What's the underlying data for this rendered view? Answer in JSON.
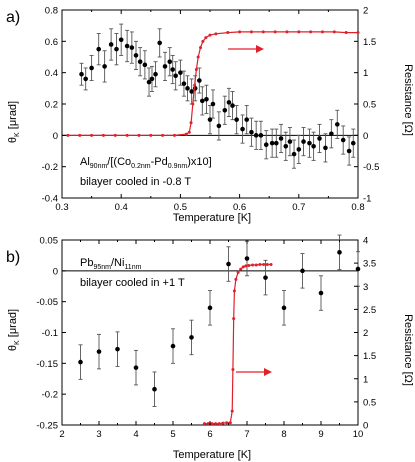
{
  "chart_data": [
    {
      "panel_label": "a)",
      "type": "scatter",
      "xlabel": "Temperature [K]",
      "ylabel": "θ",
      "ylabel_sub": "K",
      "ylabel_unit": " [μrad]",
      "y2label": "Resistance [Ω]",
      "xlim": [
        0.3,
        0.8
      ],
      "ylim": [
        -0.4,
        0.8
      ],
      "y2lim": [
        -1,
        2
      ],
      "xticks": [
        "0.3",
        "0.4",
        "0.5",
        "0.6",
        "0.7",
        "0.8"
      ],
      "yticks": [
        "-0.4",
        "-0.2",
        "0",
        "0.2",
        "0.4",
        "0.6",
        "0.8"
      ],
      "y2ticks": [
        "-1",
        "-0.5",
        "0",
        "0.5",
        "1",
        "1.5",
        "2"
      ],
      "annotation_line1_parts": [
        "Al",
        "90nm",
        "/[(Co",
        "0.2nm",
        "-Pd",
        "0.9nm",
        ")x10]"
      ],
      "annotation_line2": "bilayer cooled in -0.8 T",
      "arrow_direction": "right",
      "grid": false,
      "series": [
        {
          "axis": "left",
          "color": "#000000",
          "points": [
            {
              "x": 0.333,
              "y": 0.39,
              "err": 0.07
            },
            {
              "x": 0.34,
              "y": 0.36,
              "err": 0.07
            },
            {
              "x": 0.35,
              "y": 0.43,
              "err": 0.08
            },
            {
              "x": 0.362,
              "y": 0.55,
              "err": 0.1
            },
            {
              "x": 0.372,
              "y": 0.44,
              "err": 0.1
            },
            {
              "x": 0.383,
              "y": 0.58,
              "err": 0.1
            },
            {
              "x": 0.392,
              "y": 0.55,
              "err": 0.1
            },
            {
              "x": 0.4,
              "y": 0.61,
              "err": 0.1
            },
            {
              "x": 0.41,
              "y": 0.57,
              "err": 0.1
            },
            {
              "x": 0.418,
              "y": 0.56,
              "err": 0.1
            },
            {
              "x": 0.425,
              "y": 0.51,
              "err": 0.09
            },
            {
              "x": 0.432,
              "y": 0.47,
              "err": 0.09
            },
            {
              "x": 0.44,
              "y": 0.45,
              "err": 0.09
            },
            {
              "x": 0.447,
              "y": 0.34,
              "err": 0.09
            },
            {
              "x": 0.452,
              "y": 0.36,
              "err": 0.08
            },
            {
              "x": 0.458,
              "y": 0.39,
              "err": 0.08
            },
            {
              "x": 0.465,
              "y": 0.59,
              "err": 0.09
            },
            {
              "x": 0.474,
              "y": 0.44,
              "err": 0.09
            },
            {
              "x": 0.482,
              "y": 0.47,
              "err": 0.09
            },
            {
              "x": 0.487,
              "y": 0.42,
              "err": 0.09
            },
            {
              "x": 0.492,
              "y": 0.38,
              "err": 0.09
            },
            {
              "x": 0.5,
              "y": 0.4,
              "err": 0.08
            },
            {
              "x": 0.506,
              "y": 0.33,
              "err": 0.08
            },
            {
              "x": 0.512,
              "y": 0.3,
              "err": 0.08
            },
            {
              "x": 0.519,
              "y": 0.28,
              "err": 0.08
            },
            {
              "x": 0.525,
              "y": 0.3,
              "err": 0.08
            },
            {
              "x": 0.532,
              "y": 0.35,
              "err": 0.08
            },
            {
              "x": 0.537,
              "y": 0.22,
              "err": 0.09
            },
            {
              "x": 0.544,
              "y": 0.23,
              "err": 0.09
            },
            {
              "x": 0.55,
              "y": 0.1,
              "err": 0.09
            },
            {
              "x": 0.555,
              "y": 0.2,
              "err": 0.09
            },
            {
              "x": 0.565,
              "y": 0.06,
              "err": 0.09
            },
            {
              "x": 0.575,
              "y": 0.16,
              "err": 0.09
            },
            {
              "x": 0.582,
              "y": 0.21,
              "err": 0.09
            },
            {
              "x": 0.588,
              "y": 0.19,
              "err": 0.09
            },
            {
              "x": 0.595,
              "y": 0.1,
              "err": 0.09
            },
            {
              "x": 0.605,
              "y": 0.04,
              "err": 0.09
            },
            {
              "x": 0.612,
              "y": 0.1,
              "err": 0.09
            },
            {
              "x": 0.62,
              "y": 0.02,
              "err": 0.09
            },
            {
              "x": 0.628,
              "y": 0.0,
              "err": 0.09
            },
            {
              "x": 0.636,
              "y": 0.0,
              "err": 0.09
            },
            {
              "x": 0.645,
              "y": -0.06,
              "err": 0.09
            },
            {
              "x": 0.655,
              "y": -0.05,
              "err": 0.09
            },
            {
              "x": 0.662,
              "y": -0.05,
              "err": 0.09
            },
            {
              "x": 0.67,
              "y": -0.02,
              "err": 0.09
            },
            {
              "x": 0.678,
              "y": -0.07,
              "err": 0.09
            },
            {
              "x": 0.685,
              "y": -0.04,
              "err": 0.09
            },
            {
              "x": 0.692,
              "y": -0.12,
              "err": 0.09
            },
            {
              "x": 0.7,
              "y": -0.09,
              "err": 0.09
            },
            {
              "x": 0.708,
              "y": -0.04,
              "err": 0.09
            },
            {
              "x": 0.718,
              "y": -0.05,
              "err": 0.09
            },
            {
              "x": 0.725,
              "y": -0.07,
              "err": 0.09
            },
            {
              "x": 0.735,
              "y": -0.02,
              "err": 0.09
            },
            {
              "x": 0.745,
              "y": -0.08,
              "err": 0.09
            },
            {
              "x": 0.755,
              "y": 0.01,
              "err": 0.09
            },
            {
              "x": 0.765,
              "y": 0.07,
              "err": 0.09
            },
            {
              "x": 0.775,
              "y": -0.03,
              "err": 0.09
            },
            {
              "x": 0.785,
              "y": -0.1,
              "err": 0.09
            },
            {
              "x": 0.792,
              "y": -0.05,
              "err": 0.09
            }
          ]
        },
        {
          "axis": "right",
          "color": "#e0202a",
          "points": [
            {
              "x": 0.31,
              "y": 0.0
            },
            {
              "x": 0.33,
              "y": 0.0
            },
            {
              "x": 0.35,
              "y": 0.0
            },
            {
              "x": 0.37,
              "y": 0.0
            },
            {
              "x": 0.39,
              "y": 0.0
            },
            {
              "x": 0.41,
              "y": 0.0
            },
            {
              "x": 0.43,
              "y": 0.0
            },
            {
              "x": 0.45,
              "y": 0.0
            },
            {
              "x": 0.47,
              "y": 0.0
            },
            {
              "x": 0.49,
              "y": 0.0
            },
            {
              "x": 0.51,
              "y": 0.02
            },
            {
              "x": 0.515,
              "y": 0.05
            },
            {
              "x": 0.518,
              "y": 0.2
            },
            {
              "x": 0.521,
              "y": 0.5
            },
            {
              "x": 0.524,
              "y": 0.8
            },
            {
              "x": 0.527,
              "y": 1.05
            },
            {
              "x": 0.53,
              "y": 1.25
            },
            {
              "x": 0.534,
              "y": 1.4
            },
            {
              "x": 0.538,
              "y": 1.5
            },
            {
              "x": 0.543,
              "y": 1.56
            },
            {
              "x": 0.55,
              "y": 1.6
            },
            {
              "x": 0.56,
              "y": 1.62
            },
            {
              "x": 0.58,
              "y": 1.64
            },
            {
              "x": 0.6,
              "y": 1.65
            },
            {
              "x": 0.62,
              "y": 1.65
            },
            {
              "x": 0.64,
              "y": 1.65
            },
            {
              "x": 0.66,
              "y": 1.65
            },
            {
              "x": 0.68,
              "y": 1.65
            },
            {
              "x": 0.7,
              "y": 1.65
            },
            {
              "x": 0.72,
              "y": 1.65
            },
            {
              "x": 0.74,
              "y": 1.65
            },
            {
              "x": 0.76,
              "y": 1.65
            },
            {
              "x": 0.78,
              "y": 1.64
            },
            {
              "x": 0.8,
              "y": 1.64
            }
          ]
        }
      ]
    },
    {
      "panel_label": "b)",
      "type": "scatter",
      "xlabel": "Temperature [K]",
      "ylabel": "θ",
      "ylabel_sub": "K",
      "ylabel_unit": " [μrad]",
      "y2label": "Resistance [Ω]",
      "xlim": [
        2,
        10
      ],
      "ylim": [
        -0.25,
        0.05
      ],
      "y2lim": [
        0,
        4
      ],
      "xticks": [
        "2",
        "3",
        "4",
        "5",
        "6",
        "7",
        "8",
        "9",
        "10"
      ],
      "yticks": [
        "-0.25",
        "-0.2",
        "-0.15",
        "-0.1",
        "-0.05",
        "0",
        "0.05"
      ],
      "y2ticks": [
        "0",
        "0.5",
        "1",
        "1.5",
        "2",
        "2.5",
        "3",
        "3.5",
        "4"
      ],
      "annotation_line1_parts": [
        "Pb",
        "95nm",
        "/Ni",
        "11nm"
      ],
      "annotation_line2": "bilayer cooled in +1 T",
      "arrow_direction": "right",
      "grid": false,
      "series": [
        {
          "axis": "left",
          "color": "#000000",
          "points": [
            {
              "x": 2.5,
              "y": -0.148,
              "err": 0.028
            },
            {
              "x": 3.0,
              "y": -0.131,
              "err": 0.028
            },
            {
              "x": 3.5,
              "y": -0.127,
              "err": 0.028
            },
            {
              "x": 4.0,
              "y": -0.157,
              "err": 0.028
            },
            {
              "x": 4.5,
              "y": -0.192,
              "err": 0.028
            },
            {
              "x": 5.0,
              "y": -0.122,
              "err": 0.028
            },
            {
              "x": 5.5,
              "y": -0.108,
              "err": 0.028
            },
            {
              "x": 6.0,
              "y": -0.06,
              "err": 0.028
            },
            {
              "x": 6.5,
              "y": 0.011,
              "err": 0.028
            },
            {
              "x": 7.0,
              "y": 0.02,
              "err": 0.028
            },
            {
              "x": 7.5,
              "y": -0.011,
              "err": 0.028
            },
            {
              "x": 8.0,
              "y": -0.06,
              "err": 0.028
            },
            {
              "x": 8.5,
              "y": 0.0,
              "err": 0.028
            },
            {
              "x": 9.0,
              "y": -0.036,
              "err": 0.028
            },
            {
              "x": 9.5,
              "y": 0.03,
              "err": 0.028
            },
            {
              "x": 10.0,
              "y": 0.003,
              "err": 0.028
            }
          ]
        },
        {
          "axis": "right",
          "color": "#e0202a",
          "points": [
            {
              "x": 5.85,
              "y": 0.03
            },
            {
              "x": 5.95,
              "y": 0.03
            },
            {
              "x": 6.05,
              "y": 0.03
            },
            {
              "x": 6.15,
              "y": 0.03
            },
            {
              "x": 6.25,
              "y": 0.03
            },
            {
              "x": 6.35,
              "y": 0.04
            },
            {
              "x": 6.45,
              "y": 0.05
            },
            {
              "x": 6.55,
              "y": 0.05
            },
            {
              "x": 6.6,
              "y": 0.3
            },
            {
              "x": 6.62,
              "y": 1.2
            },
            {
              "x": 6.64,
              "y": 2.3
            },
            {
              "x": 6.66,
              "y": 2.9
            },
            {
              "x": 6.7,
              "y": 3.15
            },
            {
              "x": 6.76,
              "y": 3.3
            },
            {
              "x": 6.83,
              "y": 3.37
            },
            {
              "x": 6.9,
              "y": 3.42
            },
            {
              "x": 6.97,
              "y": 3.44
            },
            {
              "x": 7.05,
              "y": 3.45
            },
            {
              "x": 7.15,
              "y": 3.46
            },
            {
              "x": 7.25,
              "y": 3.46
            },
            {
              "x": 7.35,
              "y": 3.47
            },
            {
              "x": 7.45,
              "y": 3.47
            },
            {
              "x": 7.55,
              "y": 3.47
            },
            {
              "x": 7.65,
              "y": 3.47
            }
          ]
        }
      ]
    }
  ]
}
